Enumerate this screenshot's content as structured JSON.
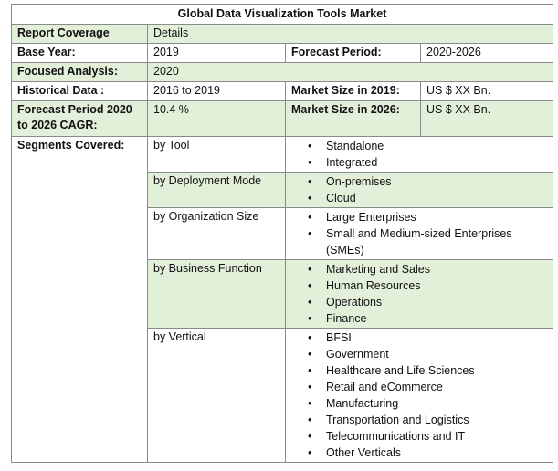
{
  "title": "Global Data Visualization Tools Market",
  "report_coverage": {
    "label": "Report Coverage",
    "value": "Details"
  },
  "base_year": {
    "label": "Base Year:",
    "value": "2019"
  },
  "forecast_period": {
    "label": "Forecast Period:",
    "value": "2020-2026"
  },
  "focused_analysis": {
    "label": "Focused Analysis:",
    "value": "2020"
  },
  "historical_data": {
    "label": "Historical Data :",
    "value": "2016 to 2019"
  },
  "market_size_2019": {
    "label": "Market Size in 2019:",
    "value": "US $ XX Bn."
  },
  "cagr": {
    "label": "Forecast Period 2020 to 2026 CAGR:",
    "value": "10.4 %"
  },
  "market_size_2026": {
    "label": "Market Size in 2026:",
    "value": "US $ XX Bn."
  },
  "segments_label": "Segments Covered:",
  "segments": [
    {
      "name": "by Tool",
      "items": [
        "Standalone",
        "Integrated"
      ]
    },
    {
      "name": "by Deployment Mode",
      "items": [
        "On-premises",
        "Cloud"
      ]
    },
    {
      "name": "by Organization Size",
      "items": [
        "Large Enterprises",
        "Small and Medium-sized Enterprises (SMEs)"
      ]
    },
    {
      "name": "by Business Function",
      "items": [
        "Marketing and Sales",
        "Human Resources",
        "Operations",
        "Finance"
      ]
    },
    {
      "name": "by Vertical",
      "items": [
        "BFSI",
        "Government",
        "Healthcare and Life Sciences",
        "Retail and eCommerce",
        "Manufacturing",
        "Transportation and Logistics",
        "Telecommunications and IT",
        "Other Verticals"
      ]
    }
  ]
}
